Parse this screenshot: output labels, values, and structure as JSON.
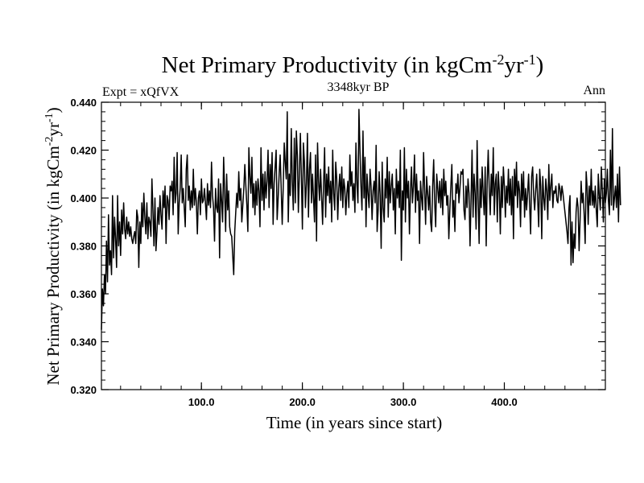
{
  "chart_data": {
    "type": "line",
    "title": {
      "main": "Net Primary Productivity (in kgCm",
      "sup1": "-2",
      "mid": "yr",
      "sup2": "-1",
      "end": ")"
    },
    "left_label": "Expt = xQfVX",
    "center_label": "3348kyr BP",
    "right_label": "Ann",
    "xlabel": "Time (in years since start)",
    "ylabel": {
      "main": "Net Primary Productivity (in kgCm",
      "sup1": "-2",
      "mid": "yr",
      "sup2": "-1",
      "end": ")"
    },
    "xlim": [
      1,
      500
    ],
    "ylim": [
      0.32,
      0.44
    ],
    "x_ticks": [
      {
        "value": 100,
        "label": "100.0"
      },
      {
        "value": 200,
        "label": "200.0"
      },
      {
        "value": 300,
        "label": "300.0"
      },
      {
        "value": 400,
        "label": "400.0"
      }
    ],
    "x_minor_step": 20,
    "y_ticks": [
      {
        "value": 0.32,
        "label": "0.320"
      },
      {
        "value": 0.34,
        "label": "0.340"
      },
      {
        "value": 0.36,
        "label": "0.360"
      },
      {
        "value": 0.38,
        "label": "0.380"
      },
      {
        "value": 0.4,
        "label": "0.400"
      },
      {
        "value": 0.42,
        "label": "0.420"
      },
      {
        "value": 0.44,
        "label": "0.440"
      }
    ],
    "y_minor_step": 0.004,
    "series": [
      {
        "name": "Net Primary Productivity",
        "x_start": 1,
        "x_step": 1,
        "values": [
          0.345,
          0.362,
          0.355,
          0.368,
          0.36,
          0.382,
          0.365,
          0.393,
          0.372,
          0.378,
          0.368,
          0.401,
          0.375,
          0.392,
          0.383,
          0.371,
          0.401,
          0.38,
          0.39,
          0.376,
          0.395,
          0.385,
          0.398,
          0.387,
          0.383,
          0.392,
          0.385,
          0.39,
          0.384,
          0.388,
          0.383,
          0.381,
          0.384,
          0.386,
          0.381,
          0.395,
          0.392,
          0.371,
          0.39,
          0.381,
          0.398,
          0.388,
          0.402,
          0.392,
          0.385,
          0.398,
          0.383,
          0.392,
          0.39,
          0.384,
          0.408,
          0.395,
          0.38,
          0.4,
          0.378,
          0.386,
          0.396,
          0.389,
          0.401,
          0.393,
          0.387,
          0.403,
          0.396,
          0.405,
          0.381,
          0.401,
          0.399,
          0.391,
          0.405,
          0.403,
          0.407,
          0.393,
          0.417,
          0.398,
          0.402,
          0.419,
          0.385,
          0.398,
          0.404,
          0.418,
          0.398,
          0.404,
          0.396,
          0.388,
          0.412,
          0.418,
          0.399,
          0.405,
          0.395,
          0.403,
          0.396,
          0.412,
          0.397,
          0.404,
          0.398,
          0.385,
          0.4,
          0.403,
          0.393,
          0.408,
          0.398,
          0.399,
          0.404,
          0.398,
          0.391,
          0.406,
          0.397,
          0.403,
          0.396,
          0.415,
          0.401,
          0.396,
          0.382,
          0.404,
          0.396,
          0.394,
          0.408,
          0.375,
          0.406,
          0.399,
          0.39,
          0.417,
          0.403,
          0.386,
          0.41,
          0.395,
          0.403,
          0.388,
          0.385,
          0.384,
          0.376,
          0.368,
          0.386,
          0.394,
          0.402,
          0.396,
          0.411,
          0.399,
          0.404,
          0.39,
          0.397,
          0.404,
          0.414,
          0.405,
          0.397,
          0.386,
          0.421,
          0.409,
          0.402,
          0.417,
          0.396,
          0.406,
          0.393,
          0.407,
          0.397,
          0.408,
          0.403,
          0.388,
          0.421,
          0.399,
          0.41,
          0.395,
          0.411,
          0.4,
          0.407,
          0.42,
          0.396,
          0.414,
          0.404,
          0.419,
          0.389,
          0.406,
          0.413,
          0.42,
          0.391,
          0.4,
          0.41,
          0.418,
          0.404,
          0.389,
          0.404,
          0.423,
          0.415,
          0.408,
          0.436,
          0.39,
          0.41,
          0.401,
          0.429,
          0.407,
          0.395,
          0.425,
          0.398,
          0.428,
          0.418,
          0.394,
          0.41,
          0.427,
          0.409,
          0.387,
          0.423,
          0.415,
          0.396,
          0.406,
          0.427,
          0.392,
          0.412,
          0.419,
          0.398,
          0.41,
          0.4,
          0.39,
          0.418,
          0.382,
          0.423,
          0.407,
          0.399,
          0.412,
          0.401,
          0.389,
          0.406,
          0.421,
          0.392,
          0.41,
          0.401,
          0.413,
          0.398,
          0.407,
          0.39,
          0.42,
          0.402,
          0.395,
          0.415,
          0.408,
          0.391,
          0.404,
          0.41,
          0.399,
          0.413,
          0.396,
          0.408,
          0.404,
          0.393,
          0.402,
          0.407,
          0.396,
          0.418,
          0.405,
          0.411,
          0.399,
          0.406,
          0.394,
          0.423,
          0.406,
          0.398,
          0.437,
          0.42,
          0.405,
          0.395,
          0.428,
          0.4,
          0.417,
          0.388,
          0.41,
          0.402,
          0.396,
          0.412,
          0.405,
          0.391,
          0.403,
          0.407,
          0.398,
          0.422,
          0.386,
          0.395,
          0.411,
          0.401,
          0.379,
          0.415,
          0.396,
          0.39,
          0.408,
          0.4,
          0.417,
          0.392,
          0.411,
          0.398,
          0.405,
          0.41,
          0.395,
          0.404,
          0.385,
          0.412,
          0.4,
          0.407,
          0.396,
          0.42,
          0.374,
          0.403,
          0.395,
          0.421,
          0.39,
          0.412,
          0.4,
          0.407,
          0.385,
          0.403,
          0.413,
          0.398,
          0.405,
          0.418,
          0.394,
          0.41,
          0.399,
          0.403,
          0.381,
          0.407,
          0.4,
          0.395,
          0.419,
          0.404,
          0.389,
          0.409,
          0.402,
          0.395,
          0.405,
          0.39,
          0.386,
          0.405,
          0.416,
          0.398,
          0.388,
          0.41,
          0.404,
          0.398,
          0.407,
          0.396,
          0.408,
          0.393,
          0.412,
          0.401,
          0.407,
          0.397,
          0.401,
          0.383,
          0.395,
          0.405,
          0.414,
          0.392,
          0.399,
          0.386,
          0.406,
          0.402,
          0.41,
          0.398,
          0.404,
          0.411,
          0.41,
          0.412,
          0.395,
          0.391,
          0.405,
          0.396,
          0.408,
          0.402,
          0.38,
          0.399,
          0.42,
          0.392,
          0.41,
          0.402,
          0.387,
          0.424,
          0.4,
          0.381,
          0.408,
          0.396,
          0.413,
          0.402,
          0.393,
          0.413,
          0.38,
          0.407,
          0.42,
          0.404,
          0.393,
          0.41,
          0.401,
          0.421,
          0.393,
          0.406,
          0.41,
          0.39,
          0.411,
          0.403,
          0.385,
          0.409,
          0.396,
          0.413,
          0.405,
          0.392,
          0.405,
          0.398,
          0.412,
          0.397,
          0.408,
          0.393,
          0.409,
          0.383,
          0.412,
          0.401,
          0.415,
          0.396,
          0.407,
          0.403,
          0.388,
          0.41,
          0.399,
          0.411,
          0.392,
          0.404,
          0.395,
          0.402,
          0.41,
          0.397,
          0.385,
          0.409,
          0.413,
          0.401,
          0.395,
          0.403,
          0.41,
          0.399,
          0.388,
          0.412,
          0.405,
          0.383,
          0.409,
          0.4,
          0.395,
          0.408,
          0.403,
          0.391,
          0.414,
          0.399,
          0.405,
          0.41,
          0.396,
          0.403,
          0.402,
          0.405,
          0.399,
          0.398,
          0.406,
          0.404,
          0.399,
          0.405,
          0.402,
          0.398,
          0.394,
          0.39,
          0.386,
          0.381,
          0.396,
          0.401,
          0.372,
          0.39,
          0.373,
          0.385,
          0.379,
          0.394,
          0.4,
          0.396,
          0.378,
          0.391,
          0.407,
          0.398,
          0.402,
          0.393,
          0.381,
          0.411,
          0.404,
          0.389,
          0.405,
          0.397,
          0.412,
          0.397,
          0.403,
          0.396,
          0.405,
          0.395,
          0.388,
          0.41,
          0.401,
          0.395,
          0.413,
          0.403,
          0.39,
          0.408,
          0.398,
          0.402,
          0.412,
          0.399,
          0.393,
          0.42,
          0.397,
          0.429,
          0.395,
          0.4,
          0.405,
          0.396,
          0.41,
          0.39,
          0.413,
          0.397
        ]
      }
    ]
  }
}
